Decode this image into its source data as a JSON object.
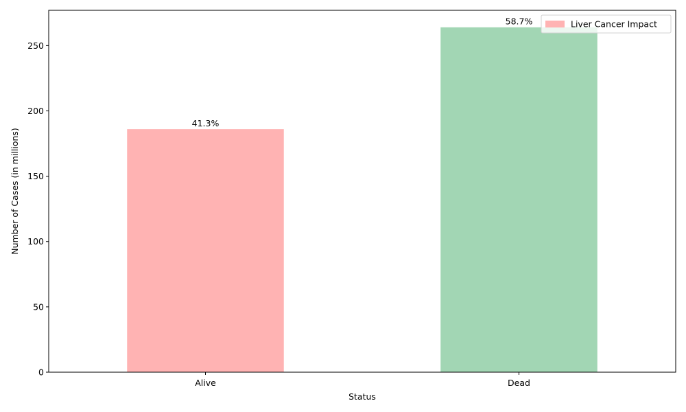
{
  "chart_data": {
    "type": "bar",
    "title": "",
    "xlabel": "Status",
    "ylabel": "Number of Cases (in millions)",
    "categories": [
      "Alive",
      "Dead"
    ],
    "values": [
      186,
      264
    ],
    "data_labels": [
      "41.3%",
      "58.7%"
    ],
    "bar_colors": [
      "#ffb3b3",
      "#a2d6b4"
    ],
    "ylim": [
      0,
      277
    ],
    "yticks": [
      0,
      50,
      100,
      150,
      200,
      250
    ],
    "grid": false,
    "legend": {
      "entries": [
        {
          "label": "Liver Cancer Impact",
          "color": "#ffb3b3"
        }
      ],
      "placement": "top-right"
    }
  }
}
